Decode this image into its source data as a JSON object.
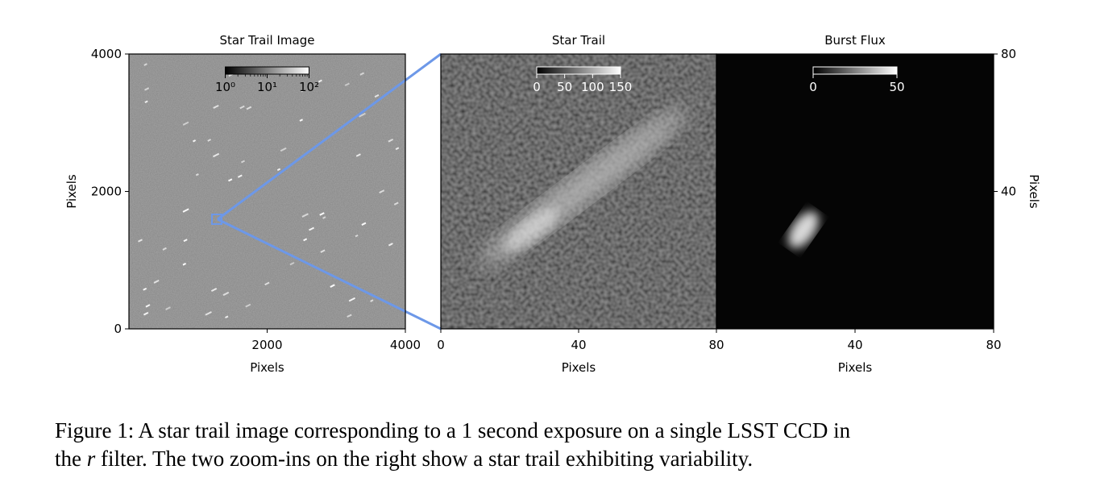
{
  "chart_data": [
    {
      "type": "image",
      "title": "Star Trail Image",
      "xlabel": "Pixels",
      "ylabel": "Pixels",
      "xlim": [
        0,
        4000
      ],
      "ylim": [
        0,
        4000
      ],
      "xticks": [
        2000,
        4000
      ],
      "yticks": [
        0,
        2000,
        4000
      ],
      "y_axis_side": "left",
      "colorbar": {
        "scale": "log",
        "lim": [
          1,
          100
        ],
        "ticks": [
          {
            "value": 1,
            "label": "10⁰"
          },
          {
            "value": 10,
            "label": "10¹"
          },
          {
            "value": 100,
            "label": "10²"
          }
        ]
      }
    },
    {
      "type": "image",
      "title": "Star Trail",
      "xlabel": "Pixels",
      "xlim": [
        0,
        80
      ],
      "ylim": [
        0,
        80
      ],
      "xticks": [
        0,
        40,
        80
      ],
      "colorbar": {
        "scale": "linear",
        "lim": [
          0,
          150
        ],
        "ticks": [
          0,
          50,
          100,
          150
        ]
      }
    },
    {
      "type": "image",
      "title": "Burst Flux",
      "xlabel": "Pixels",
      "ylabel": "Pixels",
      "xlim": [
        0,
        80
      ],
      "ylim": [
        0,
        80
      ],
      "xticks": [
        40,
        80
      ],
      "yticks": [
        40,
        80
      ],
      "y_axis_side": "right",
      "colorbar": {
        "scale": "linear",
        "lim": [
          0,
          50
        ],
        "ticks": [
          0,
          50
        ]
      }
    }
  ],
  "caption": [
    "Figure 1: A star trail image corresponding to a 1 second exposure on a single LSST CCD in",
    "the ",
    "r",
    " filter. The two zoom-ins on the right show a star trail exhibiting variability."
  ]
}
